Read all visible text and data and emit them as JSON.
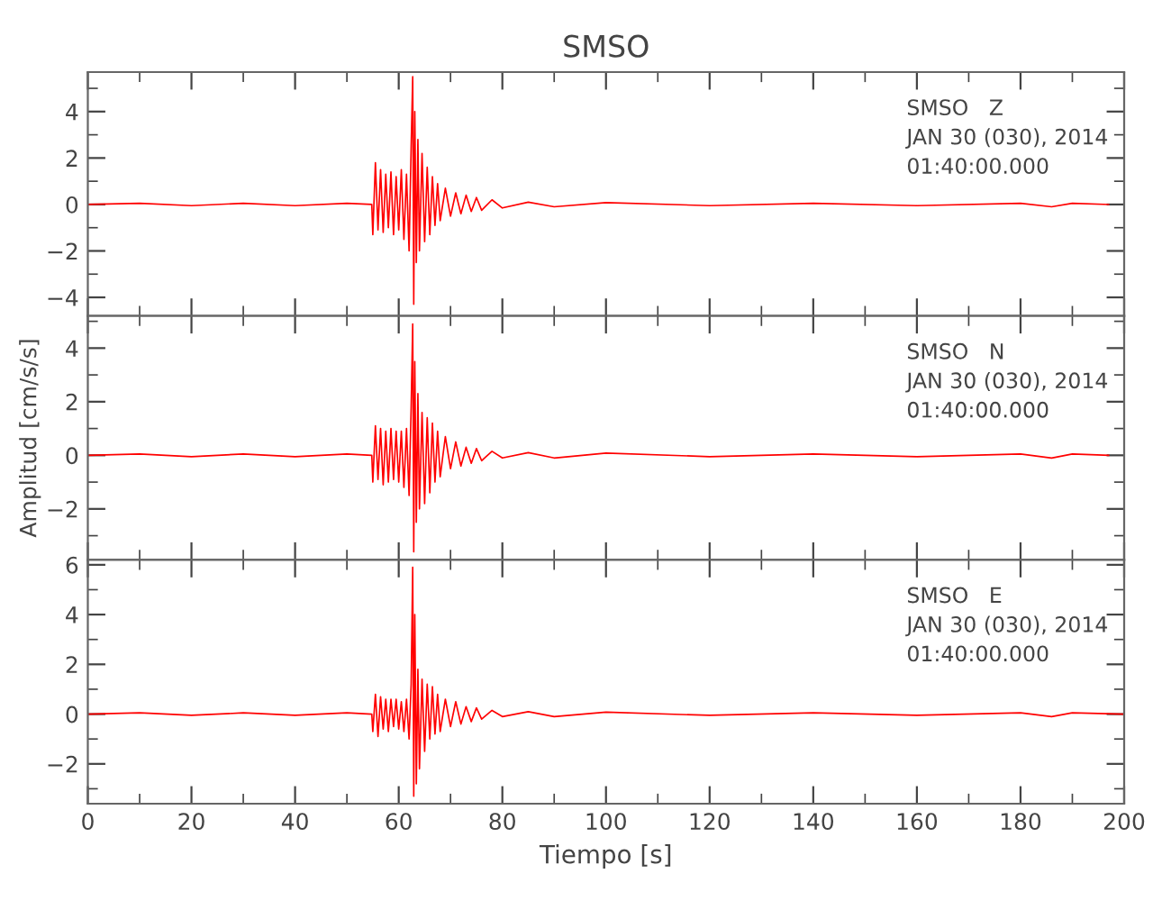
{
  "chart_data": [
    {
      "type": "line",
      "title": "SMSO",
      "xlim": [
        0,
        200
      ],
      "xticks": [
        0,
        20,
        40,
        60,
        80,
        100,
        120,
        140,
        160,
        180,
        200
      ],
      "ylim": [
        -4.8,
        5.7
      ],
      "yticks": [
        -4,
        -2,
        0,
        2,
        4
      ],
      "tick_labels": "y",
      "grid": false,
      "legend": false,
      "annotations": [
        "SMSO   Z",
        "JAN 30 (030), 2014",
        "01:40:00.000"
      ],
      "series": [
        {
          "color": "#ff0000",
          "x": [
            0,
            10,
            20,
            30,
            40,
            50,
            54.8,
            55,
            55.5,
            56,
            56.5,
            57,
            57.5,
            58,
            58.5,
            59,
            59.5,
            60,
            60.5,
            61,
            61.5,
            62,
            62.4,
            62.7,
            62.9,
            63.1,
            63.4,
            63.7,
            64,
            64.5,
            65,
            65.5,
            66,
            66.5,
            67,
            67.5,
            68,
            69,
            70,
            71,
            72,
            73,
            74,
            75,
            76,
            78,
            80,
            85,
            90,
            100,
            120,
            140,
            160,
            180,
            186,
            190,
            197
          ],
          "values": [
            0,
            0.05,
            -0.05,
            0.05,
            -0.05,
            0.05,
            0,
            -1.3,
            1.8,
            -1.1,
            1.5,
            -1.2,
            1.3,
            -1.0,
            1.4,
            -1.3,
            1.2,
            -1.1,
            1.5,
            -1.5,
            1.3,
            -2.0,
            2.5,
            5.5,
            -4.3,
            4.0,
            -2.5,
            2.8,
            -2.0,
            2.2,
            -1.6,
            1.6,
            -1.3,
            1.2,
            -0.9,
            0.9,
            -0.7,
            0.7,
            -0.5,
            0.5,
            -0.4,
            0.4,
            -0.3,
            0.3,
            -0.25,
            0.2,
            -0.15,
            0.1,
            -0.1,
            0.08,
            -0.05,
            0.05,
            -0.05,
            0.05,
            -0.1,
            0.05,
            0
          ]
        }
      ]
    },
    {
      "type": "line",
      "ylabel": "Amplitud [cm/s/s]",
      "xlim": [
        0,
        200
      ],
      "xticks": [
        0,
        20,
        40,
        60,
        80,
        100,
        120,
        140,
        160,
        180,
        200
      ],
      "ylim": [
        -3.9,
        5.2
      ],
      "yticks": [
        -2,
        0,
        2,
        4
      ],
      "tick_labels": "y",
      "grid": false,
      "legend": false,
      "annotations": [
        "SMSO   N",
        "JAN 30 (030), 2014",
        "01:40:00.000"
      ],
      "series": [
        {
          "color": "#ff0000",
          "x": [
            0,
            10,
            20,
            30,
            40,
            50,
            54.8,
            55,
            55.5,
            56,
            56.5,
            57,
            57.5,
            58,
            58.5,
            59,
            59.5,
            60,
            60.5,
            61,
            61.5,
            62,
            62.4,
            62.7,
            62.9,
            63.1,
            63.4,
            63.7,
            64,
            64.5,
            65,
            65.5,
            66,
            66.5,
            67,
            67.5,
            68,
            69,
            70,
            71,
            72,
            73,
            74,
            75,
            76,
            78,
            80,
            85,
            90,
            100,
            120,
            140,
            160,
            180,
            186,
            190,
            197
          ],
          "values": [
            0,
            0.05,
            -0.05,
            0.05,
            -0.05,
            0.05,
            0,
            -1.0,
            1.1,
            -0.9,
            1.0,
            -1.1,
            0.9,
            -1.0,
            1.0,
            -0.9,
            0.9,
            -1.0,
            0.9,
            -1.2,
            1.0,
            -1.5,
            1.8,
            4.9,
            -3.6,
            3.5,
            -2.5,
            2.3,
            -2.0,
            1.6,
            -1.8,
            1.4,
            -1.4,
            1.2,
            -1.0,
            0.9,
            -0.8,
            0.7,
            -0.5,
            0.5,
            -0.4,
            0.3,
            -0.3,
            0.25,
            -0.2,
            0.15,
            -0.1,
            0.1,
            -0.1,
            0.08,
            -0.05,
            0.05,
            -0.05,
            0.05,
            -0.1,
            0.05,
            0
          ]
        }
      ]
    },
    {
      "type": "line",
      "xlabel": "Tiempo [s]",
      "xlim": [
        0,
        200
      ],
      "xticks": [
        0,
        20,
        40,
        60,
        80,
        100,
        120,
        140,
        160,
        180,
        200
      ],
      "ylim": [
        -3.6,
        6.2
      ],
      "yticks": [
        -2,
        0,
        2,
        4,
        6
      ],
      "grid": false,
      "legend": false,
      "annotations": [
        "SMSO   E",
        "JAN 30 (030), 2014",
        "01:40:00.000"
      ],
      "series": [
        {
          "color": "#ff0000",
          "x": [
            0,
            10,
            20,
            30,
            40,
            50,
            54.8,
            55,
            55.5,
            56,
            56.5,
            57,
            57.5,
            58,
            58.5,
            59,
            59.5,
            60,
            60.5,
            61,
            61.5,
            62,
            62.4,
            62.7,
            62.9,
            63.1,
            63.4,
            63.7,
            64,
            64.5,
            65,
            65.5,
            66,
            66.5,
            67,
            67.5,
            68,
            69,
            70,
            71,
            72,
            73,
            74,
            75,
            76,
            78,
            80,
            85,
            90,
            100,
            120,
            140,
            160,
            180,
            186,
            190,
            200
          ],
          "values": [
            0,
            0.05,
            -0.05,
            0.05,
            -0.05,
            0.05,
            0,
            -0.7,
            0.8,
            -0.9,
            0.7,
            -0.6,
            0.6,
            -0.7,
            0.6,
            -0.5,
            0.6,
            -0.6,
            0.5,
            -0.7,
            0.6,
            -1.0,
            1.2,
            5.9,
            -3.3,
            4.0,
            -2.8,
            1.8,
            -2.2,
            1.4,
            -1.5,
            1.2,
            -1.0,
            1.1,
            -0.8,
            0.8,
            -0.7,
            0.6,
            -0.5,
            0.5,
            -0.4,
            0.3,
            -0.3,
            0.25,
            -0.2,
            0.15,
            -0.1,
            0.1,
            -0.1,
            0.08,
            -0.05,
            0.05,
            -0.05,
            0.05,
            -0.1,
            0.05,
            0
          ]
        }
      ]
    }
  ]
}
